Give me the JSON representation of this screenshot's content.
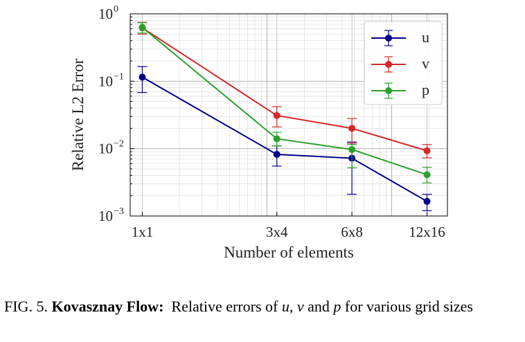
{
  "chart_data": {
    "type": "line",
    "scale": "log-log",
    "x": [
      1,
      12,
      48,
      192
    ],
    "categories": [
      "1x1",
      "3x4",
      "6x8",
      "12x16"
    ],
    "xlabel": "Number of elements",
    "ylabel": "Relative L2 Error",
    "ylim": [
      0.001,
      1
    ],
    "y_ticks": [
      {
        "base": "10",
        "exp": "0"
      },
      {
        "base": "10",
        "exp": "−1"
      },
      {
        "base": "10",
        "exp": "−2"
      },
      {
        "base": "10",
        "exp": "−3"
      }
    ],
    "grid": true,
    "legend_position": "top-right",
    "series": [
      {
        "name": "u",
        "color": "#00008b",
        "values": [
          0.115,
          0.0082,
          0.0072,
          0.00165
        ],
        "err_low": [
          0.068,
          0.0055,
          0.0021,
          0.0012
        ],
        "err_high": [
          0.165,
          0.011,
          0.0125,
          0.0021
        ]
      },
      {
        "name": "v",
        "color": "#d62728",
        "values": [
          0.62,
          0.031,
          0.02,
          0.0093
        ],
        "err_low": [
          0.5,
          0.021,
          0.012,
          0.0073
        ],
        "err_high": [
          0.75,
          0.042,
          0.028,
          0.0115
        ]
      },
      {
        "name": "p",
        "color": "#2ca02c",
        "values": [
          0.63,
          0.014,
          0.0097,
          0.0041
        ],
        "err_low": [
          0.52,
          0.011,
          0.0052,
          0.0031
        ],
        "err_high": [
          0.74,
          0.0175,
          0.0115,
          0.0053
        ]
      }
    ]
  },
  "caption": {
    "prefix": "FIG. 5. ",
    "title": "Kovasznay Flow:",
    "text_1": "Relative errors of ",
    "var_u": "u",
    "sep_1": ", ",
    "var_v": "v",
    "text_2": " and ",
    "var_p": "p",
    "text_3": " for various grid sizes"
  }
}
